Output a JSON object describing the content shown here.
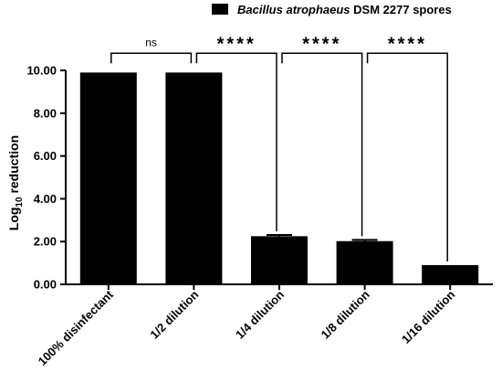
{
  "chart_data": {
    "type": "bar",
    "title": "",
    "xlabel": "",
    "ylabel": "Log",
    "ylabel_subscript": "10",
    "ylabel_suffix": " reduction",
    "categories": [
      "100% disinfectant",
      "1/2 dilution",
      "1/4 dilution",
      "1/8 dilution",
      "1/16 dilution"
    ],
    "series": [
      {
        "name_italic": "Bacillus atrophaeus",
        "name_rest": " DSM 2277 spores",
        "values": [
          9.9,
          9.9,
          2.25,
          2.02,
          0.9
        ],
        "errors": [
          0,
          0,
          0.06,
          0.06,
          0
        ],
        "color": "#000000"
      }
    ],
    "ylim": [
      0,
      10
    ],
    "yticks": [
      "0.00",
      "2.00",
      "4.00",
      "6.00",
      "8.00",
      "10.00"
    ],
    "ytick_values": [
      0,
      2,
      4,
      6,
      8,
      10
    ],
    "grid": false,
    "legend_position": "top-right",
    "significance": [
      {
        "from": 0,
        "to": 1,
        "label": "ns",
        "bracket_y": 10.8
      },
      {
        "from": 1,
        "to": 2,
        "label": "****",
        "bracket_y": 10.8
      },
      {
        "from": 2,
        "to": 3,
        "label": "****",
        "bracket_y": 10.8
      },
      {
        "from": 3,
        "to": 4,
        "label": "****",
        "bracket_y": 10.8
      }
    ]
  }
}
